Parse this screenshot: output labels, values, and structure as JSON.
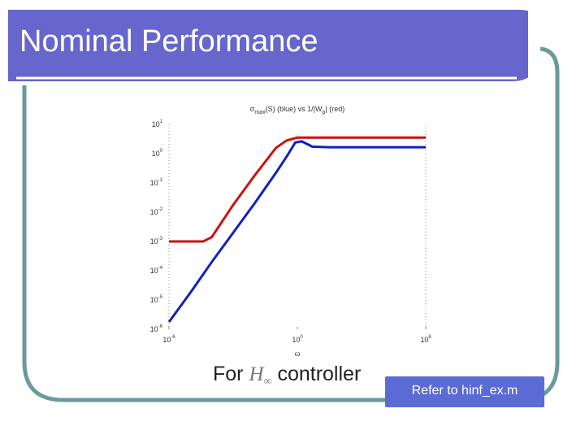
{
  "slide": {
    "title": "Nominal Performance",
    "caption_prefix": "For",
    "caption_math": "H",
    "caption_math_sub": "∞",
    "caption_suffix": "controller",
    "refer_label": "Refer to hinf_ex.m",
    "colors": {
      "title_bar": "#6666cc",
      "frame": "#6a9a9a",
      "refer_box": "#5a6bd6"
    }
  },
  "chart_data": {
    "type": "line",
    "title": "σ_max(S) (blue) vs 1/|W_p| (red)",
    "title_parts": {
      "sigma": "σ",
      "sub": "max",
      "mid": "(S) (blue) vs 1/|W",
      "sub2": "p",
      "end": "| (red)"
    },
    "xlabel": "ω",
    "ylabel": "",
    "xscale": "log",
    "yscale": "log",
    "xlim_exp": [
      -6,
      6
    ],
    "ylim_exp": [
      -6,
      1
    ],
    "x_ticks": [
      {
        "base": "10",
        "exp": "-6"
      },
      {
        "base": "10",
        "exp": "0"
      },
      {
        "base": "10",
        "exp": "6"
      }
    ],
    "y_ticks": [
      {
        "base": "10",
        "exp": "1"
      },
      {
        "base": "10",
        "exp": "0"
      },
      {
        "base": "10",
        "exp": "-1"
      },
      {
        "base": "10",
        "exp": "-2"
      },
      {
        "base": "10",
        "exp": "-3"
      },
      {
        "base": "10",
        "exp": "-4"
      },
      {
        "base": "10",
        "exp": "-5"
      },
      {
        "base": "10",
        "exp": "-6"
      }
    ],
    "series": [
      {
        "color": "#cc1111",
        "points_log": [
          [
            -6,
            -3
          ],
          [
            -5,
            -3
          ],
          [
            -4.4,
            -3
          ],
          [
            -4,
            -2.85
          ],
          [
            -3,
            -1.75
          ],
          [
            -2,
            -0.75
          ],
          [
            -1,
            0.2
          ],
          [
            -0.5,
            0.45
          ],
          [
            0,
            0.55
          ],
          [
            1,
            0.55
          ],
          [
            6,
            0.55
          ]
        ]
      },
      {
        "color": "#1122bb",
        "points_log": [
          [
            -6,
            -5.75
          ],
          [
            -5,
            -4.75
          ],
          [
            -4,
            -3.7
          ],
          [
            -3,
            -2.7
          ],
          [
            -2,
            -1.7
          ],
          [
            -1,
            -0.65
          ],
          [
            -0.5,
            -0.1
          ],
          [
            -0.1,
            0.38
          ],
          [
            0.2,
            0.42
          ],
          [
            0.7,
            0.24
          ],
          [
            1.5,
            0.22
          ],
          [
            6,
            0.22
          ]
        ]
      }
    ]
  }
}
